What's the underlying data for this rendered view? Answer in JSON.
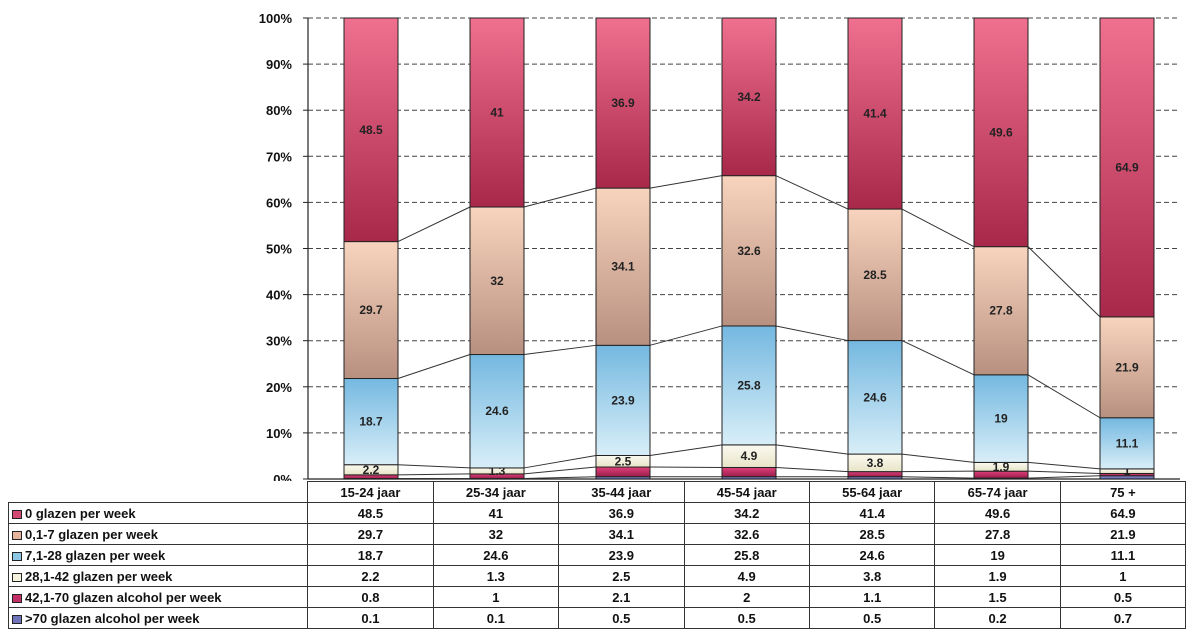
{
  "chart_data": {
    "type": "bar",
    "stacked": true,
    "percent_stacked": true,
    "categories": [
      "15-24 jaar",
      "25-34 jaar",
      "35-44 jaar",
      "45-54 jaar",
      "55-64 jaar",
      "65-74 jaar",
      "75 +"
    ],
    "y_ticks": [
      "0%",
      "10%",
      "20%",
      "30%",
      "40%",
      "50%",
      "60%",
      "70%",
      "80%",
      "90%",
      "100%"
    ],
    "ylim": [
      0,
      100
    ],
    "grid": true,
    "legend_placement": "table-left",
    "series": [
      {
        "name": "0 glazen per week",
        "values": [
          48.5,
          41,
          36.9,
          34.2,
          41.4,
          49.6,
          64.9
        ],
        "color": "#d24a72"
      },
      {
        "name": "0,1-7 glazen per week",
        "values": [
          29.7,
          32,
          34.1,
          32.6,
          28.5,
          27.8,
          21.9
        ],
        "color": "#e6b49c"
      },
      {
        "name": "7,1-28 glazen per week",
        "values": [
          18.7,
          24.6,
          23.9,
          25.8,
          24.6,
          19,
          11.1
        ],
        "color": "#8ec6e6"
      },
      {
        "name": "28,1-42 glazen per week",
        "values": [
          2.2,
          1.3,
          2.5,
          4.9,
          3.8,
          1.9,
          1
        ],
        "color": "#f4f2dc"
      },
      {
        "name": "42,1-70 glazen alcohol per week",
        "values": [
          0.8,
          1,
          2.1,
          2,
          1.1,
          1.5,
          0.5
        ],
        "color": "#c22e66"
      },
      {
        "name": ">70 glazen alcohol per week",
        "values": [
          0.1,
          0.1,
          0.5,
          0.5,
          0.5,
          0.2,
          0.7
        ],
        "color": "#6f74b8"
      }
    ],
    "table_values": [
      [
        "48.5",
        "41",
        "36.9",
        "34.2",
        "41.4",
        "49.6",
        "64.9"
      ],
      [
        "29.7",
        "32",
        "34.1",
        "32.6",
        "28.5",
        "27.8",
        "21.9"
      ],
      [
        "18.7",
        "24.6",
        "23.9",
        "25.8",
        "24.6",
        "19",
        "11.1"
      ],
      [
        "2.2",
        "1.3",
        "2.5",
        "4.9",
        "3.8",
        "1.9",
        "1"
      ],
      [
        "0.8",
        "1",
        "2.1",
        "2",
        "1.1",
        "1.5",
        "0.5"
      ],
      [
        "0.1",
        "0.1",
        "0.5",
        "0.5",
        "0.5",
        "0.2",
        "0.7"
      ]
    ]
  }
}
